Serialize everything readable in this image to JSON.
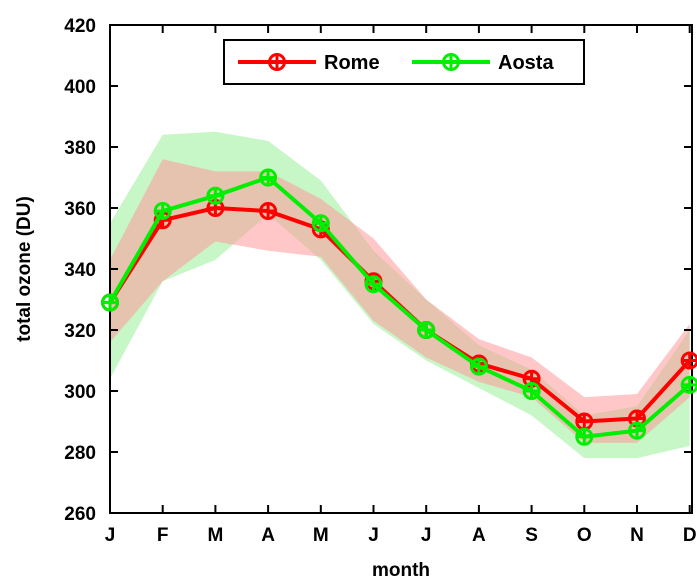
{
  "chart_data": {
    "type": "line",
    "title": "",
    "xlabel": "month",
    "ylabel": "total ozone (DU)",
    "categories": [
      "J",
      "F",
      "M",
      "A",
      "M",
      "J",
      "J",
      "A",
      "S",
      "O",
      "N",
      "D"
    ],
    "ylim": [
      260,
      420
    ],
    "yticks": [
      260,
      280,
      300,
      320,
      340,
      360,
      380,
      400,
      420
    ],
    "grid": false,
    "legend": "top-center",
    "series": [
      {
        "name": "Rome",
        "color": "#ff0000",
        "band_color": "#ff9999",
        "values": [
          329,
          356,
          360,
          359,
          353,
          336,
          320,
          309,
          304,
          290,
          291,
          310
        ],
        "lower": [
          316,
          336,
          349,
          346,
          344,
          323,
          311,
          303,
          298,
          283,
          283,
          298
        ],
        "upper": [
          343,
          376,
          372,
          372,
          363,
          350,
          330,
          317,
          311,
          298,
          299,
          322
        ]
      },
      {
        "name": "Aosta",
        "color": "#00ee00",
        "band_color": "#99ee99",
        "values": [
          329,
          359,
          364,
          370,
          355,
          335,
          320,
          308,
          300,
          285,
          287,
          302
        ],
        "lower": [
          304,
          336,
          343,
          358,
          343,
          322,
          310,
          301,
          292,
          278,
          278,
          282
        ],
        "upper": [
          355,
          384,
          385,
          382,
          369,
          346,
          330,
          315,
          307,
          292,
          295,
          320
        ]
      }
    ]
  }
}
